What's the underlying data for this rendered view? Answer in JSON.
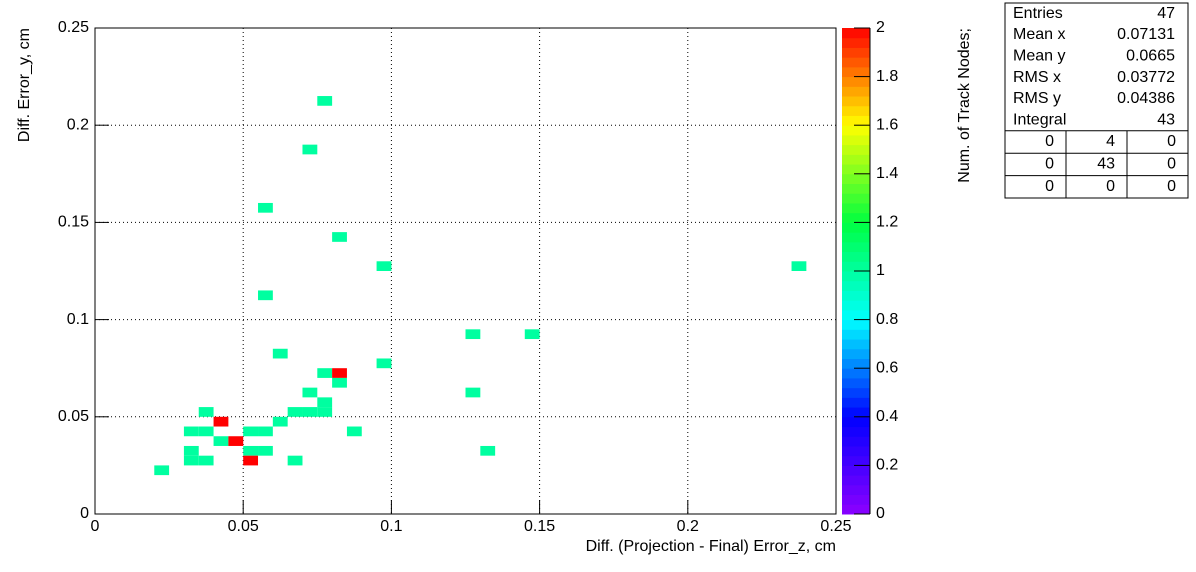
{
  "chart_data": {
    "type": "heatmap",
    "x_label": "Diff. (Projection - Final) Error_z, cm",
    "y_label": "Diff. Error_y, cm",
    "z_label": "Num. of Track Nodes;",
    "xbin": 0.005,
    "ybin": 0.005,
    "x": [
      0.075,
      0.07,
      0.055,
      0.08,
      0.095,
      0.235,
      0.055,
      0.125,
      0.145,
      0.06,
      0.095,
      0.075,
      0.08,
      0.08,
      0.07,
      0.125,
      0.075,
      0.065,
      0.07,
      0.075,
      0.035,
      0.04,
      0.06,
      0.03,
      0.035,
      0.05,
      0.055,
      0.085,
      0.04,
      0.045,
      0.05,
      0.055,
      0.03,
      0.13,
      0.03,
      0.035,
      0.05,
      0.065,
      0.02
    ],
    "y": [
      0.21,
      0.185,
      0.155,
      0.14,
      0.125,
      0.125,
      0.11,
      0.09,
      0.09,
      0.08,
      0.075,
      0.07,
      0.07,
      0.065,
      0.06,
      0.06,
      0.055,
      0.05,
      0.05,
      0.05,
      0.05,
      0.045,
      0.045,
      0.04,
      0.04,
      0.04,
      0.04,
      0.04,
      0.035,
      0.035,
      0.03,
      0.03,
      0.03,
      0.03,
      0.025,
      0.025,
      0.025,
      0.025,
      0.02
    ],
    "values": [
      1,
      1,
      1,
      1,
      1,
      1,
      1,
      1,
      1,
      1,
      1,
      1,
      2,
      1,
      1,
      1,
      1,
      1,
      1,
      1,
      1,
      2,
      1,
      1,
      1,
      1,
      1,
      1,
      1,
      2,
      1,
      1,
      1,
      1,
      1,
      1,
      2,
      1,
      1
    ],
    "xlim": [
      0,
      0.25
    ],
    "xticks": [
      0,
      0.05,
      0.1,
      0.15,
      0.2,
      0.25
    ],
    "ylim": [
      0,
      0.25
    ],
    "yticks": [
      0,
      0.05,
      0.1,
      0.15,
      0.2,
      0.25
    ],
    "zlim": [
      0,
      2
    ],
    "zticks": [
      0,
      0.2,
      0.4,
      0.6,
      0.8,
      1,
      1.2,
      1.4,
      1.6,
      1.8,
      2
    ],
    "palette": [
      "#8c00ff",
      "#0000ff",
      "#00ffff",
      "#00ff40",
      "#ffff00",
      "#ff0000"
    ],
    "grid": true
  },
  "stats": {
    "rows": [
      {
        "label": "Entries",
        "value": 47
      },
      {
        "label": "Mean x",
        "value": 0.07131
      },
      {
        "label": "Mean y",
        "value": 0.0665
      },
      {
        "label": "RMS x",
        "value": 0.03772
      },
      {
        "label": "RMS y",
        "value": 0.04386
      },
      {
        "label": "Integral",
        "value": 43
      }
    ],
    "overflow": [
      [
        0,
        4,
        0
      ],
      [
        0,
        43,
        0
      ],
      [
        0,
        0,
        0
      ]
    ]
  }
}
